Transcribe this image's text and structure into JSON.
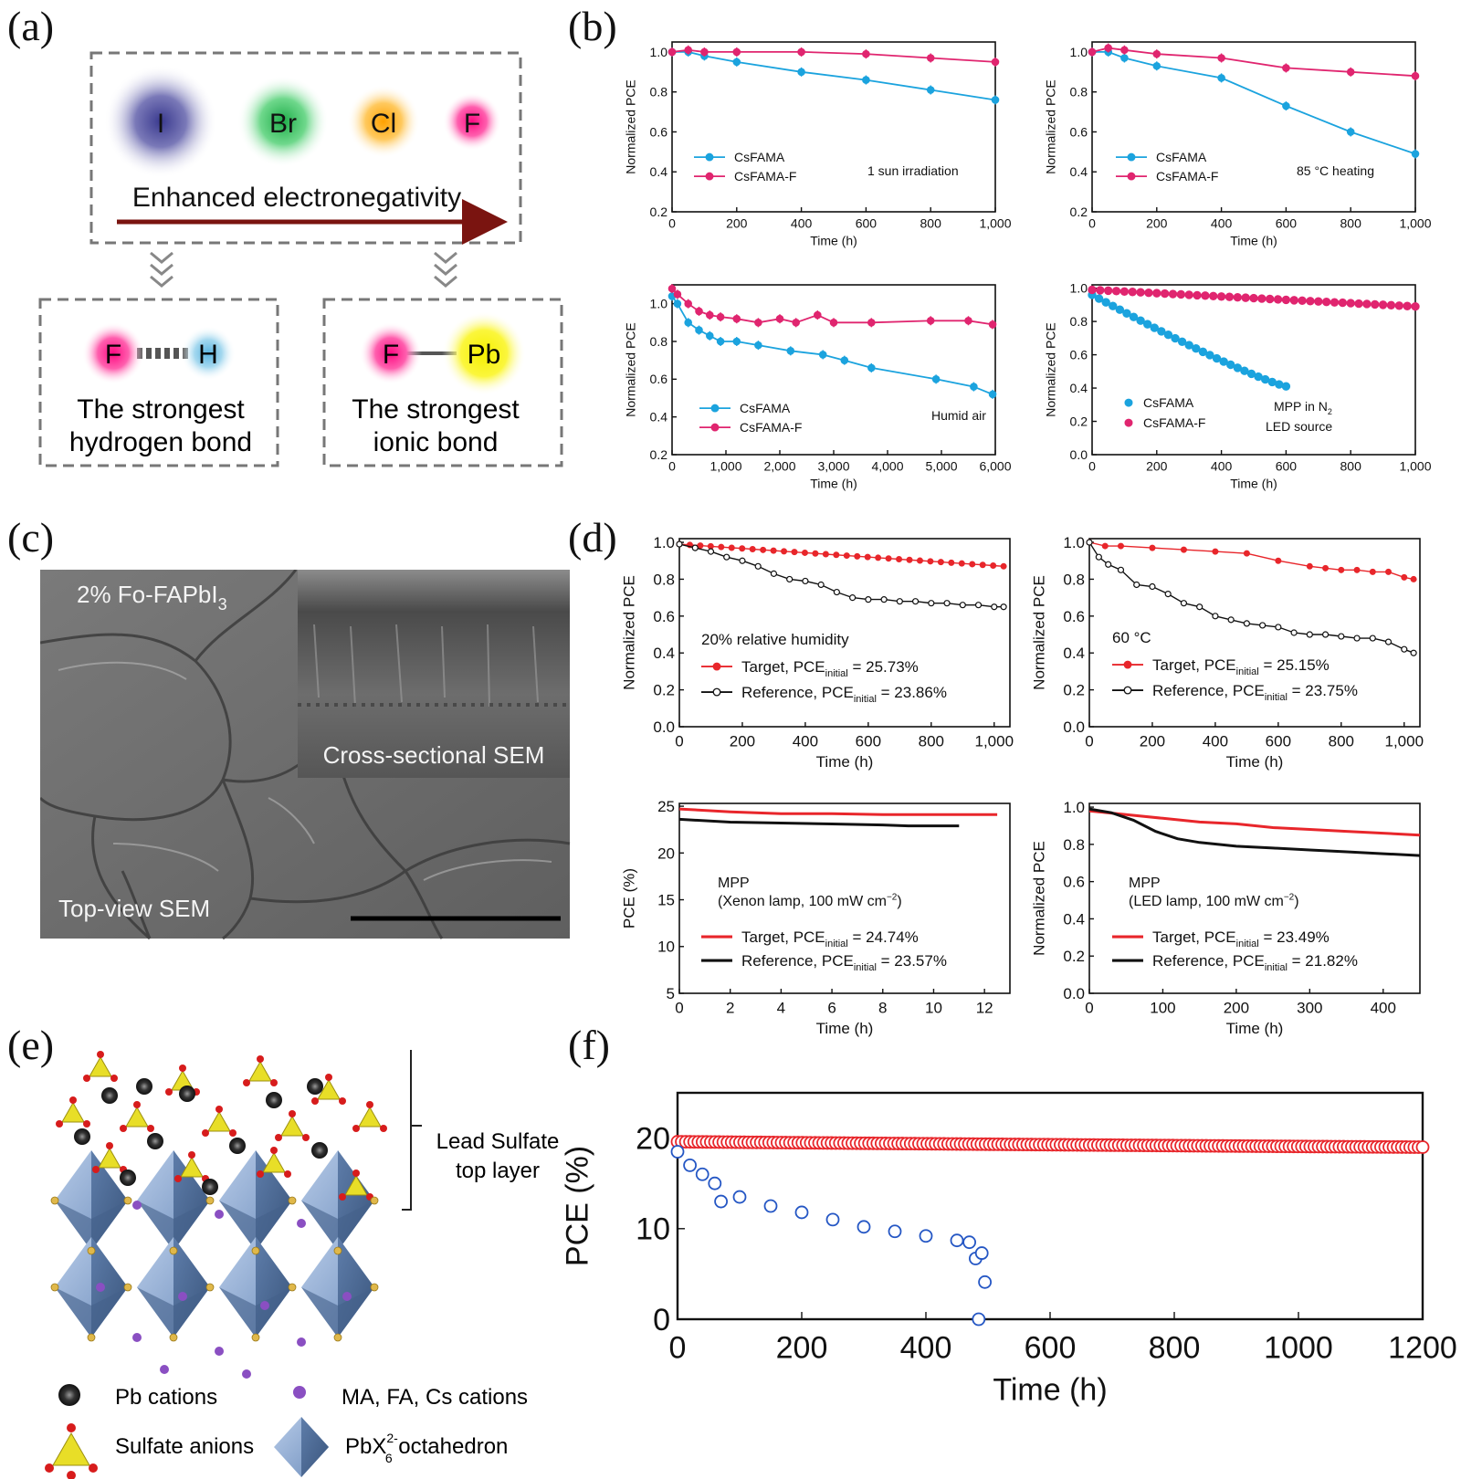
{
  "panel_labels": [
    "(a)",
    "(b)",
    "(c)",
    "(d)",
    "(e)",
    "(f)"
  ],
  "panel_a": {
    "ions": [
      "I",
      "Br",
      "Cl",
      "F"
    ],
    "ion_colors": [
      "#5a5aa0",
      "#3fbf5f",
      "#ffb21e",
      "#ff1f8e"
    ],
    "arrow_label": "Enhanced electronegativity",
    "left_box": {
      "atom1": "F",
      "atom2": "H",
      "line1": "The strongest",
      "line2": "hydrogen bond"
    },
    "right_box": {
      "atom1": "F",
      "atom2": "Pb",
      "line1": "The strongest",
      "line2": "ionic bond"
    }
  },
  "panel_c": {
    "top_label": "2% Fo-FAPbI",
    "top_label_sub": "3",
    "inset_label": "Cross-sectional SEM",
    "bottom_label": "Top-view SEM"
  },
  "panel_e": {
    "bracket_label_1": "Lead Sulfate",
    "bracket_label_2": "top layer",
    "legend": {
      "pb": "Pb cations",
      "cations": "MA, FA, Cs cations",
      "sulfate": "Sulfate anions",
      "octa": "PbX",
      "octa_sup": "2-",
      "octa_sub": "6",
      "octa_rest": " octahedron"
    }
  },
  "chart_data": [
    {
      "id": "b1",
      "type": "line",
      "xlabel": "Time (h)",
      "ylabel": "Normalized PCE",
      "xlim": [
        0,
        1000
      ],
      "ylim": [
        0.2,
        1.05
      ],
      "xticks": [
        0,
        200,
        400,
        600,
        800,
        1000
      ],
      "xtick_labels": [
        "0",
        "200",
        "400",
        "600",
        "800",
        "1,000"
      ],
      "yticks": [
        0.2,
        0.4,
        0.6,
        0.8,
        1.0
      ],
      "ytick_labels": [
        "0.2",
        "0.4",
        "0.6",
        "0.8",
        "1.0"
      ],
      "annotation": "1 sun irradiation",
      "series": [
        {
          "name": "CsFAMA",
          "color": "#1ba3de",
          "marker": "circle",
          "x": [
            0,
            50,
            100,
            200,
            400,
            600,
            800,
            1000
          ],
          "y": [
            1.0,
            1.0,
            0.98,
            0.95,
            0.9,
            0.86,
            0.81,
            0.76
          ]
        },
        {
          "name": "CsFAMA-F",
          "color": "#e0256f",
          "marker": "circle",
          "x": [
            0,
            50,
            100,
            200,
            400,
            600,
            800,
            1000
          ],
          "y": [
            1.0,
            1.01,
            1.0,
            1.0,
            1.0,
            0.99,
            0.97,
            0.95
          ]
        }
      ]
    },
    {
      "id": "b2",
      "type": "line",
      "xlabel": "Time (h)",
      "ylabel": "Normalized PCE",
      "xlim": [
        0,
        1000
      ],
      "ylim": [
        0.2,
        1.05
      ],
      "xticks": [
        0,
        200,
        400,
        600,
        800,
        1000
      ],
      "xtick_labels": [
        "0",
        "200",
        "400",
        "600",
        "800",
        "1,000"
      ],
      "yticks": [
        0.2,
        0.4,
        0.6,
        0.8,
        1.0
      ],
      "ytick_labels": [
        "0.2",
        "0.4",
        "0.6",
        "0.8",
        "1.0"
      ],
      "annotation": "85 °C heating",
      "series": [
        {
          "name": "CsFAMA",
          "color": "#1ba3de",
          "marker": "circle",
          "x": [
            0,
            50,
            100,
            200,
            400,
            600,
            800,
            1000
          ],
          "y": [
            1.0,
            1.0,
            0.97,
            0.93,
            0.87,
            0.73,
            0.6,
            0.49
          ]
        },
        {
          "name": "CsFAMA-F",
          "color": "#e0256f",
          "marker": "circle",
          "x": [
            0,
            50,
            100,
            200,
            400,
            600,
            800,
            1000
          ],
          "y": [
            1.0,
            1.02,
            1.01,
            0.99,
            0.97,
            0.92,
            0.9,
            0.88
          ]
        }
      ]
    },
    {
      "id": "b3",
      "type": "line",
      "xlabel": "Time (h)",
      "ylabel": "Normalized PCE",
      "xlim": [
        0,
        6000
      ],
      "ylim": [
        0.2,
        1.1
      ],
      "xticks": [
        0,
        1000,
        2000,
        3000,
        4000,
        5000,
        6000
      ],
      "xtick_labels": [
        "0",
        "1,000",
        "2,000",
        "3,000",
        "4,000",
        "5,000",
        "6,000"
      ],
      "yticks": [
        0.2,
        0.4,
        0.6,
        0.8,
        1.0
      ],
      "ytick_labels": [
        "0.2",
        "0.4",
        "0.6",
        "0.8",
        "1.0"
      ],
      "annotation": "Humid air",
      "series": [
        {
          "name": "CsFAMA",
          "color": "#1ba3de",
          "marker": "circle",
          "x": [
            0,
            100,
            300,
            500,
            700,
            900,
            1200,
            1600,
            2200,
            2800,
            3200,
            3700,
            4900,
            5600,
            5950
          ],
          "y": [
            1.04,
            1.0,
            0.9,
            0.86,
            0.83,
            0.8,
            0.8,
            0.78,
            0.75,
            0.73,
            0.7,
            0.66,
            0.6,
            0.56,
            0.52
          ]
        },
        {
          "name": "CsFAMA-F",
          "color": "#e0256f",
          "marker": "circle",
          "x": [
            0,
            100,
            300,
            500,
            700,
            900,
            1200,
            1600,
            2000,
            2300,
            2700,
            3000,
            3700,
            4800,
            5500,
            5950
          ],
          "y": [
            1.08,
            1.05,
            1.0,
            0.96,
            0.94,
            0.93,
            0.92,
            0.9,
            0.92,
            0.9,
            0.94,
            0.9,
            0.9,
            0.91,
            0.91,
            0.89
          ]
        }
      ]
    },
    {
      "id": "b4",
      "type": "scatter",
      "xlabel": "Time (h)",
      "ylabel": "Normalized PCE",
      "xlim": [
        0,
        1000
      ],
      "ylim": [
        0.0,
        1.02
      ],
      "xticks": [
        0,
        200,
        400,
        600,
        800,
        1000
      ],
      "xtick_labels": [
        "0",
        "200",
        "400",
        "600",
        "800",
        "1,000"
      ],
      "yticks": [
        0.0,
        0.2,
        0.4,
        0.6,
        0.8,
        1.0
      ],
      "ytick_labels": [
        "0.0",
        "0.2",
        "0.4",
        "0.6",
        "0.8",
        "1.0"
      ],
      "annotation_1": "MPP in N",
      "annotation_1_sub": "2",
      "annotation_2": "LED source",
      "series": [
        {
          "name": "CsFAMA",
          "color": "#1ba3de",
          "marker": "circle",
          "x0": 0,
          "x1": 600,
          "n": 29,
          "y0": 0.96,
          "y1": 0.41
        },
        {
          "name": "CsFAMA-F",
          "color": "#e0256f",
          "marker": "circle",
          "x0": 0,
          "x1": 1000,
          "n": 41,
          "y0": 0.99,
          "y1": 0.89
        }
      ]
    },
    {
      "id": "d1",
      "type": "line",
      "xlabel": "Time (h)",
      "ylabel": "Normalized PCE",
      "xlim": [
        0,
        1050
      ],
      "ylim": [
        0.0,
        1.02
      ],
      "xticks": [
        0,
        200,
        400,
        600,
        800,
        1000
      ],
      "xtick_labels": [
        "0",
        "200",
        "400",
        "600",
        "800",
        "1,000"
      ],
      "yticks": [
        0.0,
        0.2,
        0.4,
        0.6,
        0.8,
        1.0
      ],
      "ytick_labels": [
        "0.0",
        "0.2",
        "0.4",
        "0.6",
        "0.8",
        "1.0"
      ],
      "annotation": "20% relative humidity",
      "series": [
        {
          "name": "Target, PCE",
          "name_sub": "initial",
          "name_rest": " = 25.73%",
          "color": "#e8262b",
          "marker": "circle-filled",
          "x0": 0,
          "x1": 1030,
          "y0": 0.99,
          "y1": 0.87
        },
        {
          "name": "Reference, PCE",
          "name_sub": "initial",
          "name_rest": " = 23.86%",
          "color": "#111111",
          "marker": "circle-open",
          "x": [
            0,
            50,
            100,
            150,
            200,
            250,
            300,
            350,
            400,
            450,
            500,
            550,
            600,
            650,
            700,
            750,
            800,
            850,
            900,
            950,
            1000,
            1030
          ],
          "y": [
            0.99,
            0.97,
            0.95,
            0.92,
            0.9,
            0.87,
            0.83,
            0.8,
            0.79,
            0.77,
            0.73,
            0.7,
            0.69,
            0.69,
            0.68,
            0.68,
            0.67,
            0.67,
            0.66,
            0.66,
            0.65,
            0.65
          ]
        }
      ]
    },
    {
      "id": "d2",
      "type": "line",
      "xlabel": "Time (h)",
      "ylabel": "Normalized PCE",
      "xlim": [
        0,
        1050
      ],
      "ylim": [
        0.0,
        1.02
      ],
      "xticks": [
        0,
        200,
        400,
        600,
        800,
        1000
      ],
      "xtick_labels": [
        "0",
        "200",
        "400",
        "600",
        "800",
        "1,000"
      ],
      "yticks": [
        0.0,
        0.2,
        0.4,
        0.6,
        0.8,
        1.0
      ],
      "ytick_labels": [
        "0.0",
        "0.2",
        "0.4",
        "0.6",
        "0.8",
        "1.0"
      ],
      "annotation": "60 °C",
      "series": [
        {
          "name": "Target, PCE",
          "name_sub": "initial",
          "name_rest": " = 25.15%",
          "color": "#e8262b",
          "marker": "circle-filled",
          "x": [
            0,
            50,
            100,
            200,
            300,
            400,
            500,
            600,
            700,
            750,
            800,
            850,
            900,
            950,
            1000,
            1030
          ],
          "y": [
            1.0,
            0.98,
            0.98,
            0.97,
            0.96,
            0.95,
            0.94,
            0.9,
            0.87,
            0.86,
            0.85,
            0.85,
            0.84,
            0.84,
            0.81,
            0.8
          ]
        },
        {
          "name": "Reference, PCE",
          "name_sub": "initial",
          "name_rest": " = 23.75%",
          "color": "#111111",
          "marker": "circle-open",
          "x": [
            0,
            30,
            60,
            100,
            150,
            200,
            250,
            300,
            350,
            400,
            450,
            500,
            550,
            600,
            650,
            700,
            750,
            800,
            850,
            900,
            950,
            1000,
            1030
          ],
          "y": [
            1.0,
            0.92,
            0.88,
            0.85,
            0.77,
            0.76,
            0.72,
            0.67,
            0.65,
            0.6,
            0.58,
            0.56,
            0.55,
            0.54,
            0.51,
            0.5,
            0.5,
            0.49,
            0.48,
            0.48,
            0.46,
            0.42,
            0.4
          ]
        }
      ]
    },
    {
      "id": "d3",
      "type": "line",
      "xlabel": "Time (h)",
      "ylabel": "PCE (%)",
      "xlim": [
        0,
        13
      ],
      "ylim": [
        5,
        25.3
      ],
      "xticks": [
        0,
        2,
        4,
        6,
        8,
        10,
        12
      ],
      "xtick_labels": [
        "0",
        "2",
        "4",
        "6",
        "8",
        "10",
        "12"
      ],
      "yticks": [
        5,
        10,
        15,
        20,
        25
      ],
      "ytick_labels": [
        "5",
        "10",
        "15",
        "20",
        "25"
      ],
      "annotation_1": "MPP",
      "annotation_2": "(Xenon lamp, 100 mW cm",
      "annotation_2_sup": "−2",
      "annotation_2_rest": ")",
      "series": [
        {
          "name": "Target, PCE",
          "name_sub": "initial",
          "name_rest": " = 24.74%",
          "color": "#e8262b",
          "x": [
            0,
            2,
            4,
            6,
            8,
            10,
            12.5
          ],
          "y": [
            24.7,
            24.4,
            24.2,
            24.2,
            24.1,
            24.1,
            24.1
          ]
        },
        {
          "name": "Reference, PCE",
          "name_sub": "initial",
          "name_rest": " = 23.57%",
          "color": "#111111",
          "x": [
            0,
            2,
            4,
            6,
            8,
            9,
            11
          ],
          "y": [
            23.6,
            23.3,
            23.2,
            23.1,
            23.0,
            22.9,
            22.9
          ]
        }
      ]
    },
    {
      "id": "d4",
      "type": "line",
      "xlabel": "Time (h)",
      "ylabel": "Normalized PCE",
      "xlim": [
        0,
        450
      ],
      "ylim": [
        0.0,
        1.02
      ],
      "xticks": [
        0,
        100,
        200,
        300,
        400
      ],
      "xtick_labels": [
        "0",
        "100",
        "200",
        "300",
        "400"
      ],
      "yticks": [
        0.0,
        0.2,
        0.4,
        0.6,
        0.8,
        1.0
      ],
      "ytick_labels": [
        "0.0",
        "0.2",
        "0.4",
        "0.6",
        "0.8",
        "1.0"
      ],
      "annotation_1": "MPP",
      "annotation_2": "(LED lamp, 100 mW cm",
      "annotation_2_sup": "−2",
      "annotation_2_rest": ")",
      "series": [
        {
          "name": "Target, PCE",
          "name_sub": "initial",
          "name_rest": " = 23.49%",
          "color": "#e8262b",
          "x": [
            0,
            50,
            100,
            150,
            200,
            250,
            300,
            350,
            400,
            450
          ],
          "y": [
            0.98,
            0.96,
            0.94,
            0.92,
            0.91,
            0.89,
            0.88,
            0.87,
            0.86,
            0.85
          ]
        },
        {
          "name": "Reference, PCE",
          "name_sub": "initial",
          "name_rest": " = 21.82%",
          "color": "#111111",
          "x": [
            0,
            30,
            60,
            90,
            120,
            150,
            200,
            250,
            300,
            350,
            400,
            450
          ],
          "y": [
            0.99,
            0.97,
            0.93,
            0.87,
            0.83,
            0.81,
            0.79,
            0.78,
            0.77,
            0.76,
            0.75,
            0.74
          ]
        }
      ]
    },
    {
      "id": "f",
      "type": "scatter",
      "xlabel": "Time (h)",
      "ylabel": "PCE (%)",
      "xlim": [
        0,
        1200
      ],
      "ylim": [
        0,
        25
      ],
      "xticks": [
        0,
        200,
        400,
        600,
        800,
        1000,
        1200
      ],
      "xtick_labels": [
        "0",
        "200",
        "400",
        "600",
        "800",
        "1000",
        "1200"
      ],
      "yticks": [
        0,
        10,
        20
      ],
      "ytick_labels": [
        "0",
        "10",
        "20"
      ],
      "series": [
        {
          "name": "",
          "color": "#e8262b",
          "marker": "circle-open",
          "x0": 0,
          "x1": 1200,
          "n": 180,
          "y0": 19.6,
          "y1": 19.0
        },
        {
          "name": "",
          "color": "#2456c4",
          "marker": "circle-open",
          "points": [
            [
              0,
              18.5
            ],
            [
              20,
              17
            ],
            [
              40,
              16
            ],
            [
              60,
              15
            ],
            [
              70,
              13
            ],
            [
              100,
              13.5
            ],
            [
              150,
              12.5
            ],
            [
              200,
              11.8
            ],
            [
              250,
              11
            ],
            [
              300,
              10.2
            ],
            [
              350,
              9.7
            ],
            [
              400,
              9.2
            ],
            [
              450,
              8.7
            ],
            [
              470,
              8.5
            ],
            [
              480,
              6.7
            ],
            [
              490,
              7.3
            ],
            [
              495,
              4.1
            ],
            [
              485,
              0
            ]
          ]
        }
      ]
    }
  ]
}
